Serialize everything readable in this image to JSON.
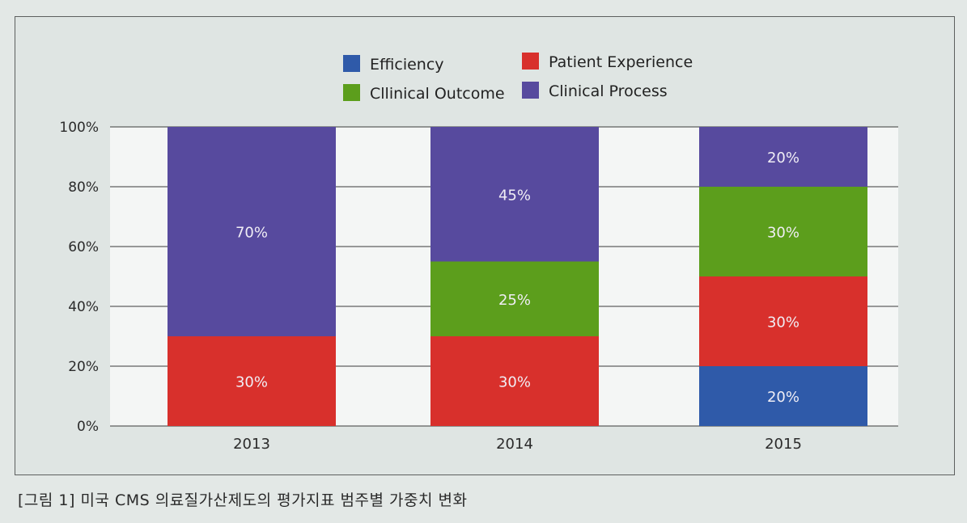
{
  "caption": "[그림 1] 미국 CMS 의료질가산제도의 평가지표 범주별 가중치 변화",
  "chart_data": {
    "type": "bar",
    "stacked": true,
    "categories": [
      "2013",
      "2014",
      "2015"
    ],
    "series": [
      {
        "name": "Efficiency",
        "color": "#2f5aa9",
        "values": [
          0,
          0,
          20
        ],
        "labels": [
          "",
          "",
          "20%"
        ]
      },
      {
        "name": "Patient Experience",
        "color": "#d8302c",
        "values": [
          30,
          30,
          30
        ],
        "labels": [
          "30%",
          "30%",
          "30%"
        ]
      },
      {
        "name": "Cllinical Outcome",
        "color": "#5c9e1c",
        "values": [
          0,
          25,
          30
        ],
        "labels": [
          "",
          "25%",
          "30%"
        ]
      },
      {
        "name": "Clinical Process",
        "color": "#574a9e",
        "values": [
          70,
          45,
          20
        ],
        "labels": [
          "70%",
          "45%",
          "20%"
        ]
      }
    ],
    "ylim": [
      0,
      100
    ],
    "yticks": [
      "0%",
      "20%",
      "40%",
      "60%",
      "80%",
      "100%"
    ],
    "ytick_values": [
      0,
      20,
      40,
      60,
      80,
      100
    ],
    "grid": true,
    "legend": "top-center",
    "legend_order": [
      "Efficiency",
      "Patient Experience",
      "Cllinical Outcome",
      "Clinical Process"
    ]
  }
}
